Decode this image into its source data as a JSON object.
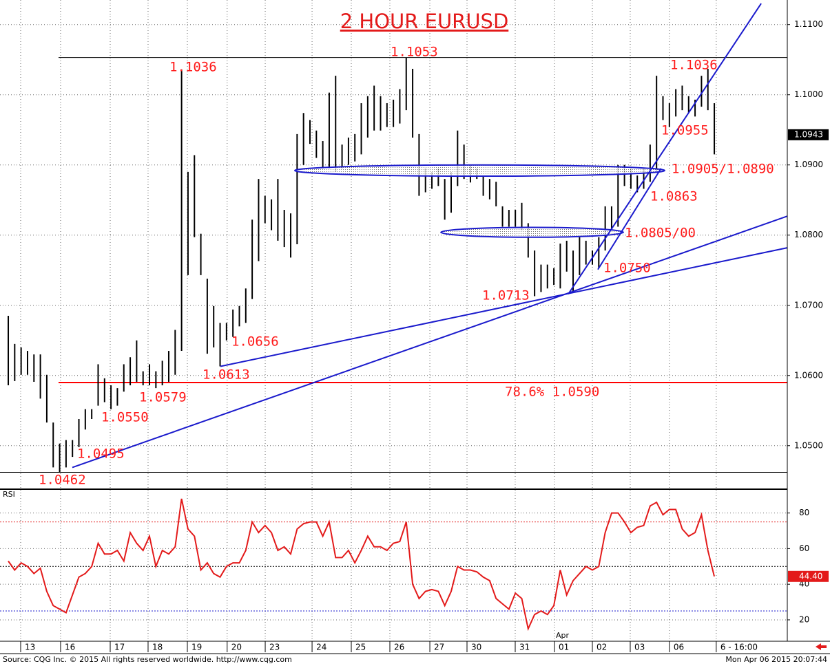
{
  "chart_data": [
    {
      "type": "ohlc",
      "title": "2 HOUR EURUSD",
      "color": "#000000",
      "grid": true,
      "xlim": [
        -1.29,
        121.37
      ],
      "ylim": [
        1.0439,
        1.1135
      ],
      "yticks": [
        {
          "value": 1.05,
          "label": "1.0500"
        },
        {
          "value": 1.06,
          "label": "1.0600"
        },
        {
          "value": 1.07,
          "label": "1.0700"
        },
        {
          "value": 1.08,
          "label": "1.0800"
        },
        {
          "value": 1.09,
          "label": "1.0900"
        },
        {
          "value": 1.1,
          "label": "1.1000"
        },
        {
          "value": 1.11,
          "label": "1.1100"
        }
      ],
      "high": [
        1.0685,
        1.0645,
        1.064,
        1.0635,
        1.063,
        1.063,
        1.0601,
        1.0533,
        1.0503,
        1.0508,
        1.0508,
        1.0538,
        1.0552,
        1.0552,
        1.0616,
        1.0596,
        1.0586,
        1.0582,
        1.0616,
        1.0626,
        1.065,
        1.0606,
        1.0616,
        1.0606,
        1.0621,
        1.0635,
        1.0665,
        1.1036,
        1.089,
        1.0914,
        1.0802,
        1.0738,
        1.0699,
        1.0675,
        1.0675,
        1.0694,
        1.0699,
        1.0724,
        1.0822,
        1.088,
        1.0856,
        1.0851,
        1.088,
        1.0836,
        1.0831,
        1.0944,
        1.0974,
        1.0964,
        1.0949,
        1.0934,
        1.1003,
        1.1027,
        1.0929,
        1.0939,
        1.0944,
        1.0988,
        1.0998,
        1.1013,
        1.0998,
        1.0988,
        1.0993,
        1.1008,
        1.1053,
        1.1037,
        1.0944,
        1.0895,
        1.089,
        1.0895,
        1.088,
        1.089,
        1.0949,
        1.0929,
        1.09,
        1.0895,
        1.0885,
        1.088,
        1.0876,
        1.0841,
        1.0836,
        1.0836,
        1.0846,
        1.0817,
        1.0778,
        1.0758,
        1.0758,
        1.0753,
        1.0788,
        1.0792,
        1.0778,
        1.0797,
        1.0792,
        1.0778,
        1.0797,
        1.0841,
        1.0841,
        1.09,
        1.09,
        1.0895,
        1.0885,
        1.0895,
        1.0929,
        1.1027,
        1.0998,
        1.0988,
        1.1008,
        1.1013,
        1.0998,
        1.0993,
        1.1027,
        1.1037,
        1.0988
      ],
      "low": [
        1.0586,
        1.0592,
        1.0601,
        1.0601,
        1.0591,
        1.0567,
        1.0533,
        1.0469,
        1.0462,
        1.0469,
        1.0484,
        1.0498,
        1.0523,
        1.0538,
        1.0557,
        1.0562,
        1.0552,
        1.0557,
        1.0577,
        1.0586,
        1.0591,
        1.0586,
        1.0586,
        1.0582,
        1.0586,
        1.0591,
        1.0601,
        1.0635,
        1.0743,
        1.0797,
        1.0743,
        1.0631,
        1.064,
        1.0613,
        1.065,
        1.0655,
        1.067,
        1.0675,
        1.0709,
        1.0763,
        1.0817,
        1.0807,
        1.0792,
        1.0783,
        1.0768,
        1.0787,
        1.09,
        1.093,
        1.091,
        1.0895,
        1.0895,
        1.089,
        1.0895,
        1.09,
        1.0905,
        1.0915,
        1.0939,
        1.0949,
        1.0949,
        1.0954,
        1.0954,
        1.0959,
        1.0978,
        1.0939,
        1.0856,
        1.0861,
        1.0866,
        1.087,
        1.0822,
        1.0832,
        1.087,
        1.088,
        1.0875,
        1.088,
        1.0856,
        1.0851,
        1.0841,
        1.0812,
        1.0812,
        1.0812,
        1.0807,
        1.0768,
        1.0713,
        1.0719,
        1.0724,
        1.0729,
        1.0724,
        1.0748,
        1.0719,
        1.0743,
        1.0758,
        1.0758,
        1.0753,
        1.0778,
        1.0807,
        1.0812,
        1.087,
        1.0866,
        1.0861,
        1.0866,
        1.0876,
        1.089,
        1.0964,
        1.0954,
        1.0969,
        1.0978,
        1.0974,
        1.0969,
        1.0983,
        1.0978,
        1.0915
      ],
      "last_price": 1.0943,
      "levels": [
        {
          "value": 1.1053,
          "color": "#000000",
          "xstart": 7.83
        },
        {
          "value": 1.0462,
          "color": "#000000",
          "xstart": -1.29
        },
        {
          "value": 1.059,
          "color": "#ff0000",
          "xstart": 7.83
        }
      ],
      "trendlines_color": "#1a1acc",
      "trendlines": [
        {
          "x": [
            9.98,
            121.37
          ],
          "y": [
            1.0469,
            1.0827
          ]
        },
        {
          "x": [
            33.05,
            121.37
          ],
          "y": [
            1.0613,
            1.0782
          ]
        },
        {
          "x": [
            87.25,
            117.3
          ],
          "y": [
            1.0716,
            1.113
          ]
        },
        {
          "x": [
            91.86,
            101.7
          ],
          "y": [
            1.0751,
            1.0895
          ]
        }
      ],
      "zones": [
        {
          "x": [
            44.64,
            102.27
          ],
          "y": [
            1.0884,
            1.09
          ]
        },
        {
          "x": [
            67.4,
            95.83
          ],
          "y": [
            1.0797,
            1.0811
          ]
        }
      ],
      "annotations": [
        "1.1036",
        "1.1053",
        "1.1036",
        "1.0955",
        "1.0905/1.0890",
        "1.0863",
        "1.0805/00",
        "1.0750",
        "1.0713",
        "1.0656",
        "1.0613",
        "1.0579",
        "1.0550",
        "1.0495",
        "1.0462",
        "78.6% 1.0590"
      ]
    },
    {
      "type": "line",
      "label": "RSI",
      "color": "#e31a1a",
      "grid": true,
      "xlim": [
        -1.29,
        121.37
      ],
      "ylim": [
        8,
        93
      ],
      "yticks": [
        20,
        40,
        60,
        80
      ],
      "values": [
        53,
        48,
        52,
        50,
        46,
        49,
        36,
        28,
        26,
        24,
        34,
        44,
        46,
        50,
        63,
        57,
        57,
        59,
        53,
        69,
        63,
        59,
        67,
        50,
        59,
        57,
        61,
        88,
        71,
        67,
        48,
        52,
        46,
        44,
        50,
        52,
        52,
        59,
        75,
        69,
        73,
        69,
        59,
        61,
        57,
        71,
        74,
        75,
        75,
        67,
        75,
        55,
        55,
        59,
        52,
        59,
        67,
        61,
        61,
        59,
        63,
        64,
        75,
        40,
        32,
        36,
        37,
        36,
        28,
        36,
        50,
        48,
        48,
        47,
        44,
        42,
        32,
        29,
        26,
        35,
        32,
        15,
        23,
        25,
        23,
        28,
        48,
        34,
        42,
        46,
        50,
        48,
        50,
        69,
        80,
        80,
        75,
        69,
        72,
        73,
        84,
        86,
        79,
        82,
        82,
        71,
        67,
        69,
        79,
        59,
        44.4
      ],
      "last": {
        "value": 44.4,
        "label": "44.40"
      },
      "levels": [
        {
          "value": 75,
          "color": "#e31a1a"
        },
        {
          "value": 50,
          "color": "#000000"
        },
        {
          "value": 25,
          "color": "#1a1acc"
        }
      ],
      "xticks": [
        {
          "value": 1.93,
          "label": "13"
        },
        {
          "value": 8.15,
          "label": "16"
        },
        {
          "value": 15.88,
          "label": "17"
        },
        {
          "value": 21.78,
          "label": "18"
        },
        {
          "value": 27.9,
          "label": "19"
        },
        {
          "value": 34.1,
          "label": "20"
        },
        {
          "value": 40.03,
          "label": "23"
        },
        {
          "value": 47.33,
          "label": "24"
        },
        {
          "value": 53.44,
          "label": "25"
        },
        {
          "value": 59.45,
          "label": "26"
        },
        {
          "value": 65.68,
          "label": "27"
        },
        {
          "value": 71.47,
          "label": "30"
        },
        {
          "value": 78.98,
          "label": "31"
        },
        {
          "value": 85.1,
          "label": "01"
        },
        {
          "value": 91.0,
          "label": "02"
        },
        {
          "value": 96.9,
          "label": "03"
        },
        {
          "value": 103.0,
          "label": "06"
        },
        {
          "value": 110.3,
          "label": "6 - 16:00"
        }
      ],
      "month_label": "Apr"
    }
  ],
  "footer": {
    "source": "Source: CQG Inc. © 2015 All rights reserved worldwide. http://www.cqg.com",
    "timestamp": "Mon Apr 06 2015 20:07:44"
  }
}
